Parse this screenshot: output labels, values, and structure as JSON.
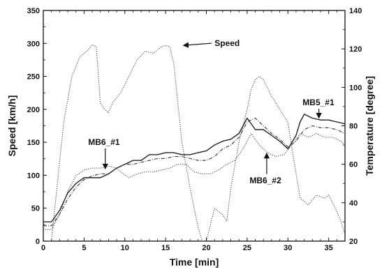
{
  "chart_data": {
    "type": "line",
    "xlabel": "Time [min]",
    "ylabel": "Speed [km/h]",
    "y2label": "Temperature [degree]",
    "xlim": [
      0,
      37
    ],
    "ylim": [
      0,
      350
    ],
    "y2lim": [
      20,
      140
    ],
    "xticks": [
      0,
      5,
      10,
      15,
      20,
      25,
      30,
      35
    ],
    "yticks": [
      0,
      50,
      100,
      150,
      200,
      250,
      300,
      350
    ],
    "y2ticks": [
      20,
      40,
      60,
      80,
      100,
      120,
      140
    ],
    "grid": false,
    "series": [
      {
        "name": "Speed",
        "axis": "left",
        "style": "dotted",
        "x": [
          0,
          1.0,
          1.5,
          2.5,
          3.5,
          4.5,
          5.5,
          6.0,
          6.5,
          7.0,
          7.5,
          8.0,
          8.5,
          9.5,
          10.5,
          11.5,
          12.5,
          13.5,
          14.0,
          14.5,
          15.0,
          15.5,
          16.0,
          16.5,
          17.0,
          18.0,
          19.0,
          19.5,
          20.0,
          21.0,
          22.0,
          22.5,
          23.0,
          24.0,
          25.0,
          25.5,
          26.0,
          26.5,
          27.0,
          28.0,
          29.0,
          30.0,
          30.5,
          31.5,
          32.5,
          33.5,
          34.5,
          35.0,
          36.0,
          36.5,
          37.0
        ],
        "values": [
          0,
          0,
          60,
          180,
          250,
          280,
          290,
          298,
          295,
          210,
          200,
          195,
          210,
          225,
          250,
          275,
          288,
          285,
          290,
          295,
          297,
          295,
          270,
          210,
          150,
          80,
          20,
          0,
          0,
          50,
          40,
          30,
          80,
          150,
          200,
          230,
          245,
          250,
          245,
          220,
          200,
          180,
          140,
          65,
          55,
          70,
          65,
          70,
          45,
          30,
          10
        ]
      },
      {
        "name": "MB5_#1",
        "axis": "right",
        "style": "solid",
        "x": [
          0,
          1.0,
          2.0,
          3.0,
          4.0,
          5.0,
          6.0,
          7.0,
          8.0,
          9.0,
          10.0,
          11.0,
          12.0,
          13.0,
          14.0,
          15.0,
          16.0,
          17.0,
          18.0,
          19.0,
          20.0,
          21.0,
          22.0,
          23.0,
          24.0,
          25.0,
          26.0,
          27.0,
          28.0,
          29.0,
          30.0,
          31.0,
          31.5,
          32.0,
          33.0,
          34.0,
          35.0,
          36.0,
          37.0
        ],
        "values": [
          30,
          30,
          36,
          45,
          50,
          53,
          53,
          53,
          55,
          58,
          60,
          62,
          62,
          65,
          65,
          66,
          66,
          65,
          65,
          66,
          67,
          70,
          72,
          73,
          76,
          84,
          78,
          78,
          75,
          72,
          68,
          75,
          82,
          86,
          84,
          83,
          83,
          82,
          81
        ]
      },
      {
        "name": "MB6_#1",
        "axis": "right",
        "style": "dashdot",
        "x": [
          0,
          1.0,
          2.0,
          3.0,
          4.0,
          5.0,
          6.0,
          7.0,
          8.0,
          9.0,
          10.0,
          11.0,
          12.0,
          13.0,
          14.0,
          15.0,
          16.0,
          17.0,
          18.0,
          19.0,
          20.0,
          21.0,
          22.0,
          23.0,
          24.0,
          25.0,
          26.0,
          27.0,
          28.0,
          29.0,
          30.0,
          31.0,
          32.0,
          33.0,
          34.0,
          35.0,
          36.0,
          37.0
        ],
        "values": [
          28,
          28,
          34,
          42,
          48,
          52,
          54,
          55,
          55,
          58,
          60,
          60,
          61,
          62,
          63,
          63,
          64,
          64,
          63,
          62,
          62,
          64,
          68,
          70,
          74,
          82,
          84,
          80,
          76,
          73,
          69,
          72,
          78,
          80,
          79,
          79,
          78,
          76
        ]
      },
      {
        "name": "MB6_#2",
        "axis": "right",
        "style": "dotted",
        "x": [
          0,
          1.0,
          2.0,
          3.0,
          4.0,
          5.0,
          6.0,
          7.0,
          8.0,
          9.0,
          9.5,
          10.5,
          11.5,
          12.5,
          13.5,
          14.5,
          15.5,
          16.5,
          17.5,
          18.5,
          19.5,
          20.5,
          21.5,
          22.5,
          23.5,
          24.5,
          25.5,
          26.5,
          27.5,
          28.5,
          29.5,
          30.5,
          31.5,
          32.5,
          33.5,
          34.5,
          35.5,
          36.5,
          37.0
        ],
        "values": [
          26,
          26,
          34,
          46,
          54,
          57,
          58,
          58,
          59,
          58,
          56,
          53,
          55,
          56,
          56,
          57,
          58,
          60,
          60,
          56,
          55,
          55,
          57,
          60,
          62,
          68,
          76,
          70,
          66,
          64,
          65,
          70,
          76,
          74,
          76,
          74,
          74,
          72,
          70
        ]
      }
    ],
    "annotations": [
      {
        "text": "Speed",
        "x": 21.0,
        "y": 296.0,
        "axis": "left",
        "arrow_to": {
          "x": 17.2,
          "y": 297.0
        }
      },
      {
        "text": "MB6_#1",
        "x": 5.5,
        "y": 146.0,
        "axis": "left",
        "arrow_to": {
          "x": 7.6,
          "y": 110.0
        }
      },
      {
        "text": "MB6_#2",
        "x": 25.3,
        "y": 88.0,
        "axis": "left",
        "arrow_to": {
          "x": 27.4,
          "y": 133.0
        }
      },
      {
        "text": "MB5_#1",
        "x": 31.8,
        "y": 206.0,
        "axis": "left",
        "arrow_to": {
          "x": 33.8,
          "y": 187.0
        }
      }
    ]
  }
}
